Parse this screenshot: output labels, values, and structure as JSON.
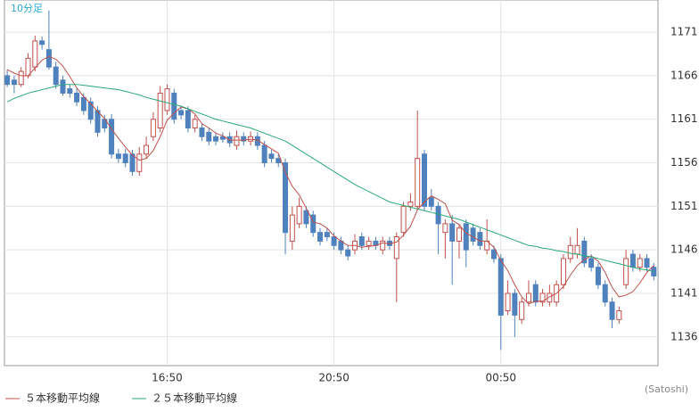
{
  "chart_data": {
    "type": "candlestick",
    "annotations": [
      "10分足",
      "(Satoshi)"
    ],
    "categories": [
      null,
      null,
      null,
      null,
      null,
      null,
      null,
      null,
      null,
      null,
      null,
      null,
      null,
      null,
      null,
      null,
      null,
      null,
      null,
      null,
      null,
      null,
      null,
      "16:50",
      null,
      null,
      null,
      null,
      null,
      null,
      null,
      null,
      null,
      null,
      null,
      null,
      null,
      null,
      null,
      null,
      null,
      null,
      null,
      null,
      null,
      null,
      null,
      "20:50",
      null,
      null,
      null,
      null,
      null,
      null,
      null,
      null,
      null,
      null,
      null,
      null,
      null,
      null,
      null,
      null,
      null,
      null,
      null,
      null,
      null,
      null,
      null,
      "00:50",
      null,
      null,
      null,
      null,
      null,
      null,
      null,
      null,
      null,
      null,
      null,
      null,
      null,
      null,
      null,
      null,
      null,
      null,
      null,
      null,
      null,
      null
    ],
    "open": [
      1166,
      1165.5,
      1165,
      1166,
      1167,
      1170,
      1169,
      1167,
      1165.5,
      1164.5,
      1164,
      1163.5,
      1163,
      1162,
      1161,
      1161,
      1157,
      1157,
      1157,
      1155,
      1157,
      1159,
      1160,
      1162,
      1164,
      1162,
      1162,
      1160,
      1160,
      1159.5,
      1159,
      1159,
      1159,
      1158,
      1159,
      1158.5,
      1159,
      1158,
      1157,
      1156.5,
      1156,
      1147,
      1149,
      1150.5,
      1150,
      1148,
      1148,
      1147.5,
      1147,
      1146,
      1146,
      1147.5,
      1146.5,
      1147,
      1146,
      1147,
      1145,
      1148,
      1151,
      1151,
      1157,
      1152,
      1151,
      1148,
      1149,
      1147,
      1149,
      1148.5,
      1148,
      1146,
      1146,
      1145,
      1139,
      1141,
      1138,
      1140,
      1142,
      1140,
      1140,
      1140,
      1142,
      1145,
      1145.5,
      1147,
      1145,
      1144,
      1142,
      1140,
      1138,
      1142,
      1145.5,
      1144,
      1145,
      1144
    ],
    "high": [
      1166.7,
      1166,
      1167,
      1168.6,
      1170.6,
      1170.5,
      1173.5,
      1167.6,
      1166,
      1165,
      1164.6,
      1164,
      1163.5,
      1162.5,
      1161.5,
      1161.6,
      1157.6,
      1157.6,
      1157.5,
      1157.8,
      1159,
      1161.8,
      1164.8,
      1165,
      1164.5,
      1162.5,
      1162.5,
      1161.5,
      1160.5,
      1160,
      1159.5,
      1159.5,
      1159.5,
      1159.7,
      1159.5,
      1159.6,
      1159.5,
      1158.5,
      1157.5,
      1157,
      1156.5,
      1151,
      1152,
      1151,
      1150.5,
      1148.5,
      1148.5,
      1148,
      1147.5,
      1146.5,
      1147.8,
      1148,
      1147.5,
      1147.5,
      1147.5,
      1147.5,
      1148,
      1151.5,
      1152.5,
      1162,
      1157.5,
      1153,
      1151.5,
      1149.5,
      1150,
      1149,
      1149.5,
      1149,
      1148.5,
      1149.5,
      1146.5,
      1145.5,
      1142.5,
      1141.5,
      1140.5,
      1142.5,
      1142.5,
      1141.5,
      1142,
      1142.5,
      1145.5,
      1147.5,
      1148.5,
      1147.5,
      1145.5,
      1144.5,
      1142.5,
      1140.5,
      1139.5,
      1146,
      1146,
      1145.5,
      1145.5,
      1144.5
    ],
    "low": [
      1164.7,
      1164,
      1164.7,
      1165.7,
      1166.5,
      1169,
      1166.7,
      1164.5,
      1163.7,
      1163.5,
      1162.5,
      1161.5,
      1160.5,
      1159,
      1159.5,
      1156.5,
      1156,
      1155.5,
      1154.5,
      1154.5,
      1156.5,
      1158.5,
      1159.5,
      1161.5,
      1160.5,
      1161,
      1159.5,
      1159.5,
      1158.5,
      1158,
      1158,
      1158.3,
      1157.8,
      1157.5,
      1158,
      1158,
      1157.5,
      1155.5,
      1156,
      1155.5,
      1145.5,
      1146,
      1148.5,
      1148.5,
      1147.5,
      1146.5,
      1147,
      1146,
      1145.5,
      1144.8,
      1145.5,
      1146,
      1146,
      1146,
      1145.5,
      1146,
      1140,
      1147.5,
      1150.5,
      1150.5,
      1150.5,
      1150.5,
      1145.5,
      1145,
      1142,
      1145,
      1144,
      1146.5,
      1146,
      1145.5,
      1144.5,
      1134.5,
      1138.5,
      1136,
      1137.5,
      1139.5,
      1139.5,
      1139.5,
      1139.5,
      1139.5,
      1141.5,
      1144.5,
      1145,
      1144,
      1143.5,
      1141.5,
      1139.5,
      1137,
      1137.5,
      1141.5,
      1143.5,
      1143.5,
      1143.5,
      1142.5
    ],
    "close": [
      1165,
      1165,
      1166.5,
      1168,
      1170,
      1169.6,
      1167,
      1165,
      1164,
      1164,
      1163,
      1162,
      1161,
      1159.5,
      1160,
      1157,
      1156.5,
      1156,
      1155,
      1157,
      1158,
      1161,
      1164,
      1164.5,
      1161,
      1161.5,
      1160,
      1161,
      1159,
      1158.5,
      1158.5,
      1158.7,
      1158.3,
      1159,
      1158.5,
      1159,
      1158,
      1156,
      1156.5,
      1156,
      1148,
      1150,
      1151,
      1149,
      1148,
      1147,
      1147.5,
      1146.5,
      1146,
      1145.3,
      1147,
      1146.5,
      1147,
      1146.5,
      1147,
      1146.5,
      1147.5,
      1151,
      1151.5,
      1156.5,
      1151,
      1151,
      1149,
      1149,
      1147,
      1148.5,
      1146,
      1147,
      1146.5,
      1147,
      1145,
      1138.5,
      1141,
      1138.5,
      1140,
      1141,
      1140,
      1141,
      1141,
      1142,
      1145,
      1146.5,
      1146.5,
      1144.5,
      1144,
      1142,
      1140,
      1138,
      1139,
      1145,
      1144,
      1145,
      1144,
      1143
    ],
    "up_color": "#c0504d",
    "down_color": "#4f81bd",
    "series": [
      {
        "name": "５本移動平均線",
        "color": "#c0504d",
        "values": [
          1166.7,
          1166.3,
          1166,
          1166,
          1166.9,
          1167.8,
          1168.2,
          1167.9,
          1167.1,
          1165.9,
          1164.6,
          1163.6,
          1162.8,
          1161.9,
          1161.1,
          1159.9,
          1158.8,
          1157.8,
          1156.9,
          1156.3,
          1156.5,
          1157.4,
          1159,
          1160.9,
          1161.7,
          1162.4,
          1162.2,
          1161.6,
          1160.5,
          1160,
          1159.4,
          1159.1,
          1158.6,
          1158.6,
          1158.6,
          1158.7,
          1158.6,
          1158.1,
          1157.6,
          1157.1,
          1154.9,
          1153.3,
          1152.3,
          1150.8,
          1149.2,
          1149,
          1148.5,
          1147.6,
          1147,
          1146.5,
          1146.5,
          1146.3,
          1146.4,
          1146.5,
          1146.8,
          1146.7,
          1146.9,
          1147.7,
          1148.7,
          1150.6,
          1151.5,
          1152.2,
          1151.8,
          1151.3,
          1149.4,
          1148.9,
          1147.9,
          1147.5,
          1147,
          1147,
          1146.3,
          1144.8,
          1143.6,
          1142,
          1140.6,
          1139.8,
          1140.1,
          1140.1,
          1140.6,
          1141,
          1141.8,
          1143.1,
          1144.2,
          1144.9,
          1145.3,
          1144.7,
          1143.4,
          1141.7,
          1140.6,
          1140.8,
          1141.2,
          1142.2,
          1143.4,
          1144.2
        ]
      },
      {
        "name": "２５本移動平均線",
        "color": "#2aa876",
        "values": [
          1163,
          1163.4,
          1163.7,
          1164,
          1164.2,
          1164.4,
          1164.6,
          1164.8,
          1165,
          1165,
          1165,
          1164.9,
          1164.8,
          1164.7,
          1164.6,
          1164.5,
          1164.4,
          1164.2,
          1164,
          1163.8,
          1163.5,
          1163.3,
          1163.1,
          1162.9,
          1162.7,
          1162.5,
          1162.2,
          1161.9,
          1161.6,
          1161.3,
          1161,
          1160.8,
          1160.6,
          1160.4,
          1160.2,
          1160,
          1159.7,
          1159.4,
          1159.1,
          1158.8,
          1158.5,
          1158,
          1157.5,
          1157,
          1156.5,
          1156,
          1155.5,
          1155,
          1154.5,
          1154,
          1153.5,
          1153.1,
          1152.7,
          1152.3,
          1151.9,
          1151.5,
          1151.3,
          1151.1,
          1150.9,
          1150.7,
          1150.5,
          1150.3,
          1150.1,
          1149.9,
          1149.7,
          1149.5,
          1149.2,
          1148.9,
          1148.6,
          1148.3,
          1148,
          1147.7,
          1147.4,
          1147.1,
          1146.8,
          1146.5,
          1146.4,
          1146.2,
          1146.1,
          1145.9,
          1145.8,
          1145.6,
          1145.5,
          1145.3,
          1145.2,
          1145,
          1144.8,
          1144.6,
          1144.4,
          1144.2,
          1144,
          1143.8,
          1143.7,
          1143.5
        ]
      }
    ],
    "ylim": [
      1132.7,
      1174.7
    ],
    "yticks": [
      1136,
      1141,
      1146,
      1151,
      1156,
      1161,
      1166,
      1171
    ],
    "grid": true
  }
}
